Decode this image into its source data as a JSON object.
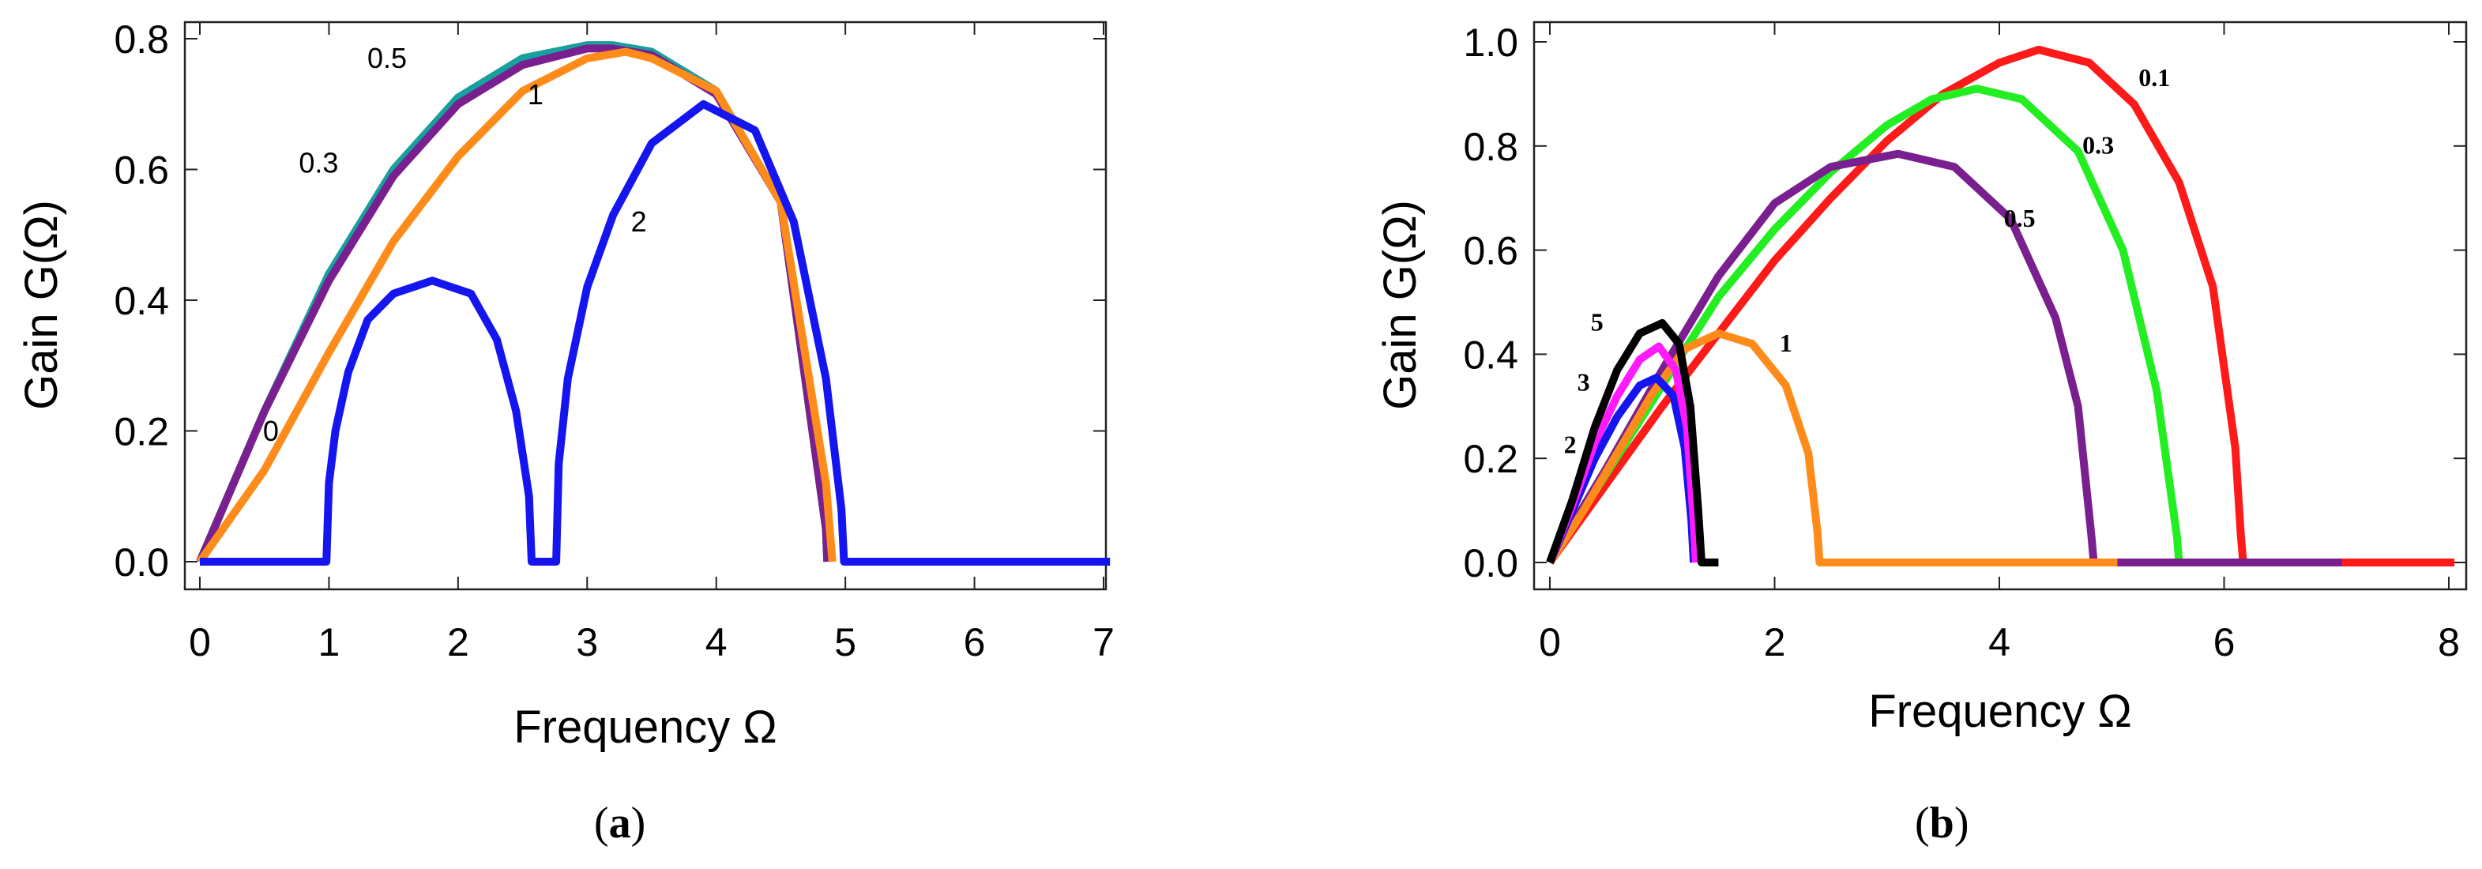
{
  "chart_data": [
    {
      "id": "a",
      "type": "line",
      "caption_letter": "a",
      "title": "",
      "xlabel": "Frequency Ω",
      "ylabel": "Gain G(Ω)",
      "xlim": [
        0,
        7
      ],
      "ylim": [
        -0.04,
        0.82
      ],
      "xticks": [
        "0",
        "1",
        "2",
        "3",
        "4",
        "5",
        "6",
        "7"
      ],
      "yticks": [
        "0.0",
        "0.2",
        "0.4",
        "0.6",
        "0.8"
      ],
      "series": [
        {
          "name": "0",
          "color": "#1e8f1e",
          "x": [
            0,
            0.5,
            1,
            1.5,
            2,
            2.5,
            3,
            3.2,
            3.5,
            4,
            4.5,
            4.85,
            4.86
          ],
          "y": [
            0,
            0.23,
            0.44,
            0.6,
            0.71,
            0.77,
            0.79,
            0.79,
            0.78,
            0.72,
            0.55,
            0.05,
            0
          ]
        },
        {
          "name": "0.3",
          "color": "#17a0a0",
          "x": [
            0,
            0.5,
            1,
            1.5,
            2,
            2.5,
            3,
            3.2,
            3.5,
            4,
            4.5,
            4.85,
            4.86
          ],
          "y": [
            0,
            0.23,
            0.44,
            0.6,
            0.71,
            0.77,
            0.79,
            0.79,
            0.78,
            0.72,
            0.55,
            0.05,
            0
          ]
        },
        {
          "name": "0.5",
          "color": "#7a1f8f",
          "x": [
            0,
            0.5,
            1,
            1.5,
            2,
            2.5,
            3,
            3.2,
            3.5,
            4,
            4.5,
            4.85,
            4.86
          ],
          "y": [
            0,
            0.23,
            0.43,
            0.59,
            0.7,
            0.76,
            0.785,
            0.785,
            0.775,
            0.715,
            0.55,
            0.05,
            0
          ]
        },
        {
          "name": "1",
          "color": "#ff8c1a",
          "x": [
            0,
            0.5,
            1,
            1.5,
            2,
            2.5,
            3,
            3.3,
            3.5,
            4,
            4.5,
            4.85,
            4.9
          ],
          "y": [
            0,
            0.14,
            0.32,
            0.49,
            0.62,
            0.72,
            0.77,
            0.78,
            0.77,
            0.72,
            0.55,
            0.12,
            0
          ]
        },
        {
          "name": "2",
          "color": "#1515f0",
          "x": [
            0,
            0.98,
            1.0,
            1.05,
            1.15,
            1.3,
            1.5,
            1.8,
            2.1,
            2.3,
            2.45,
            2.55,
            2.57,
            2.76,
            2.78,
            2.85,
            3.0,
            3.2,
            3.5,
            3.9,
            4.3,
            4.6,
            4.85,
            4.97,
            4.99,
            7.05
          ],
          "y": [
            0,
            0,
            0.12,
            0.2,
            0.29,
            0.37,
            0.41,
            0.43,
            0.41,
            0.34,
            0.23,
            0.1,
            0,
            0,
            0.15,
            0.28,
            0.42,
            0.53,
            0.64,
            0.7,
            0.66,
            0.52,
            0.28,
            0.08,
            0,
            0
          ]
        }
      ],
      "annotations": [
        {
          "text": "0",
          "series": "0",
          "x": 0.55,
          "y": 0.185
        },
        {
          "text": "0.3",
          "series": "0.3",
          "x": 0.92,
          "y": 0.595
        },
        {
          "text": "0.5",
          "series": "0.5",
          "x": 1.45,
          "y": 0.755
        },
        {
          "text": "1",
          "series": "1",
          "x": 2.6,
          "y": 0.7
        },
        {
          "text": "2",
          "series": "2",
          "x": 3.4,
          "y": 0.505
        }
      ]
    },
    {
      "id": "b",
      "type": "line",
      "caption_letter": "b",
      "title": "",
      "xlabel": "Frequency Ω",
      "ylabel": "Gain G(Ω)",
      "xlim": [
        0,
        8
      ],
      "ylim": [
        -0.04,
        1.03
      ],
      "xticks": [
        "0",
        "2",
        "4",
        "6",
        "8"
      ],
      "yticks": [
        "0.0",
        "0.2",
        "0.4",
        "0.6",
        "0.8",
        "1.0"
      ],
      "series": [
        {
          "name": "0.1",
          "color": "#ff1a1a",
          "x": [
            0,
            0.5,
            1,
            1.5,
            2,
            2.5,
            3,
            3.5,
            4,
            4.35,
            4.8,
            5.2,
            5.6,
            5.9,
            6.1,
            6.15,
            6.17,
            8.05
          ],
          "y": [
            0,
            0.15,
            0.3,
            0.44,
            0.58,
            0.7,
            0.81,
            0.9,
            0.96,
            0.985,
            0.96,
            0.88,
            0.73,
            0.53,
            0.22,
            0.05,
            0,
            0
          ]
        },
        {
          "name": "0.3",
          "color": "#22ee22",
          "x": [
            0,
            0.5,
            1,
            1.5,
            2,
            2.5,
            3,
            3.4,
            3.8,
            4.2,
            4.7,
            5.1,
            5.4,
            5.58,
            5.6,
            7.05
          ],
          "y": [
            0,
            0.17,
            0.34,
            0.51,
            0.64,
            0.75,
            0.84,
            0.89,
            0.91,
            0.89,
            0.79,
            0.6,
            0.33,
            0.05,
            0,
            0
          ]
        },
        {
          "name": "0.5",
          "color": "#7a1f8f",
          "x": [
            0,
            0.5,
            1,
            1.5,
            2,
            2.5,
            3.1,
            3.6,
            4.1,
            4.5,
            4.7,
            4.82,
            4.84,
            7.05
          ],
          "y": [
            0,
            0.18,
            0.37,
            0.55,
            0.69,
            0.76,
            0.785,
            0.76,
            0.66,
            0.47,
            0.3,
            0.05,
            0,
            0
          ]
        },
        {
          "name": "1",
          "color": "#ff8c1a",
          "x": [
            0,
            0.3,
            0.6,
            0.9,
            1.2,
            1.5,
            1.8,
            2.1,
            2.3,
            2.38,
            2.4,
            5.05
          ],
          "y": [
            0,
            0.1,
            0.21,
            0.32,
            0.41,
            0.44,
            0.42,
            0.34,
            0.21,
            0.06,
            0,
            0
          ]
        },
        {
          "name": "2",
          "color": "#1515f0",
          "x": [
            0,
            0.2,
            0.4,
            0.6,
            0.8,
            0.95,
            1.1,
            1.2,
            1.26,
            1.28
          ],
          "y": [
            0,
            0.1,
            0.2,
            0.28,
            0.34,
            0.355,
            0.32,
            0.22,
            0.08,
            0
          ]
        },
        {
          "name": "3",
          "color": "#ff1aff",
          "x": [
            0,
            0.2,
            0.4,
            0.6,
            0.8,
            0.97,
            1.12,
            1.22,
            1.28,
            1.3
          ],
          "y": [
            0,
            0.11,
            0.23,
            0.32,
            0.39,
            0.415,
            0.37,
            0.26,
            0.08,
            0
          ]
        },
        {
          "name": "5",
          "color": "#000000",
          "x": [
            0,
            0.2,
            0.4,
            0.6,
            0.8,
            1.0,
            1.15,
            1.25,
            1.32,
            1.35,
            1.5
          ],
          "y": [
            0,
            0.12,
            0.26,
            0.37,
            0.44,
            0.46,
            0.42,
            0.3,
            0.1,
            0,
            0
          ]
        }
      ],
      "annotations": [
        {
          "text": "0.1",
          "series": "0.1",
          "x": 5.38,
          "y": 0.915
        },
        {
          "text": "0.3",
          "series": "0.3",
          "x": 4.88,
          "y": 0.785
        },
        {
          "text": "0.5",
          "series": "0.5",
          "x": 4.18,
          "y": 0.645
        },
        {
          "text": "1",
          "series": "1",
          "x": 2.1,
          "y": 0.405
        },
        {
          "text": "5",
          "series": "5",
          "x": 0.42,
          "y": 0.445
        },
        {
          "text": "3",
          "series": "3",
          "x": 0.3,
          "y": 0.33
        },
        {
          "text": "2",
          "series": "2",
          "x": 0.18,
          "y": 0.21
        }
      ]
    }
  ]
}
